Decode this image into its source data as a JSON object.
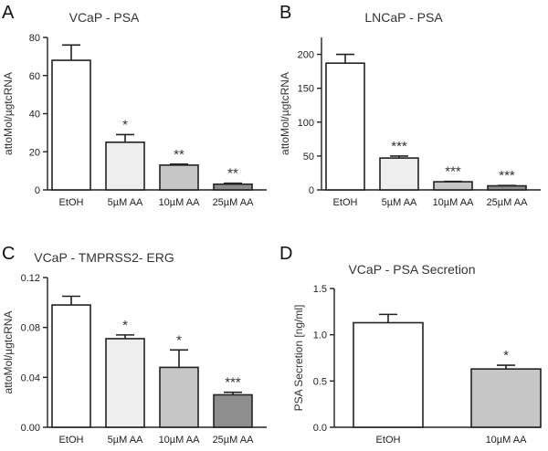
{
  "chart_data": [
    {
      "id": "A",
      "type": "bar",
      "panel": "A",
      "title": "VCaP - PSA",
      "ylabel": "attoMol/µgtcRNA",
      "categories": [
        "EtOH",
        "5µM AA",
        "10µM AA",
        "25µM AA"
      ],
      "values": [
        68,
        25,
        13,
        3
      ],
      "errors": [
        8,
        4,
        0.5,
        0.5
      ],
      "significance": [
        "",
        "*",
        "**",
        "**"
      ],
      "ylim": [
        0,
        80
      ],
      "yticks": [
        0,
        20,
        40,
        60,
        80
      ],
      "ytick_labels": [
        "0",
        "20",
        "40",
        "60",
        "80"
      ],
      "colors": [
        "#ffffff",
        "#eeeeee",
        "#c6c6c6",
        "#8e8e8e"
      ]
    },
    {
      "id": "B",
      "type": "bar",
      "panel": "B",
      "title": "LNCaP - PSA",
      "ylabel": "attoMol/µgtcRNA",
      "categories": [
        "EtOH",
        "5µM AA",
        "10µM AA",
        "25µM AA"
      ],
      "values": [
        187,
        47,
        12,
        6
      ],
      "errors": [
        13,
        3,
        0.5,
        0.5
      ],
      "significance": [
        "",
        "***",
        "***",
        "***"
      ],
      "ylim": [
        0,
        225
      ],
      "yticks": [
        0,
        50,
        100,
        150,
        200
      ],
      "ytick_labels": [
        "0",
        "50",
        "100",
        "150",
        "200"
      ],
      "colors": [
        "#ffffff",
        "#eeeeee",
        "#c6c6c6",
        "#8e8e8e"
      ]
    },
    {
      "id": "C",
      "type": "bar",
      "panel": "C",
      "title": "VCaP - TMPRSS2- ERG",
      "ylabel": "attoMol/µgtcRNA",
      "categories": [
        "EtOH",
        "5µM AA",
        "10µM AA",
        "25µM AA"
      ],
      "values": [
        0.098,
        0.071,
        0.048,
        0.026
      ],
      "errors": [
        0.007,
        0.003,
        0.014,
        0.002
      ],
      "significance": [
        "",
        "*",
        "*",
        "***"
      ],
      "ylim": [
        0,
        0.12
      ],
      "yticks": [
        0,
        0.04,
        0.08,
        0.12
      ],
      "ytick_labels": [
        "0.00",
        "0.04",
        "0.08",
        "0.12"
      ],
      "colors": [
        "#ffffff",
        "#eeeeee",
        "#c6c6c6",
        "#8e8e8e"
      ]
    },
    {
      "id": "D",
      "type": "bar",
      "panel": "D",
      "title": "VCaP - PSA Secretion",
      "ylabel": "PSA Secretion [ng/ml]",
      "categories": [
        "EtOH",
        "10µM AA"
      ],
      "values": [
        1.13,
        0.63
      ],
      "errors": [
        0.09,
        0.04
      ],
      "significance": [
        "",
        "*"
      ],
      "ylim": [
        0,
        1.5
      ],
      "yticks": [
        0,
        0.5,
        1.0,
        1.5
      ],
      "ytick_labels": [
        "0.0",
        "0.5",
        "1.0",
        "1.5"
      ],
      "colors": [
        "#ffffff",
        "#c6c6c6"
      ]
    }
  ]
}
